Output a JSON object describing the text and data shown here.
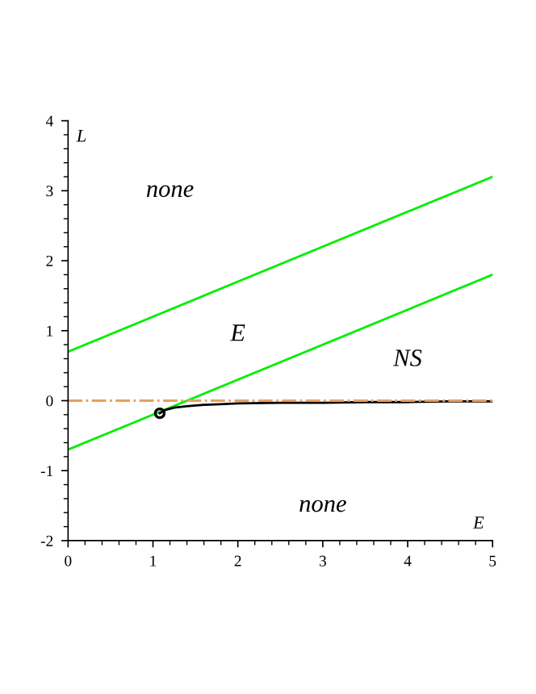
{
  "chart_data": {
    "type": "line",
    "xlabel": "E",
    "ylabel": "L",
    "xlim": [
      0,
      5
    ],
    "ylim": [
      -2,
      4
    ],
    "xticks": [
      0,
      1,
      2,
      3,
      4,
      5
    ],
    "yticks": [
      -2,
      -1,
      0,
      1,
      2,
      3,
      4
    ],
    "grid": false,
    "legend": false,
    "series": [
      {
        "color": "#00ee00",
        "x": [
          0,
          5
        ],
        "values": [
          0.7,
          3.2
        ]
      },
      {
        "color": "#00ee00",
        "x": [
          0,
          5
        ],
        "values": [
          -0.7,
          1.8
        ]
      },
      {
        "color": "#000000",
        "x": [
          1.08,
          1.15,
          1.25,
          1.4,
          1.6,
          1.8,
          2,
          2.5,
          3,
          3.5,
          4,
          4.5,
          5
        ],
        "values": [
          -0.18,
          -0.13,
          -0.1,
          -0.08,
          -0.06,
          -0.05,
          -0.04,
          -0.03,
          -0.03,
          -0.02,
          -0.02,
          -0.01,
          -0.01
        ]
      },
      {
        "type": "scatter",
        "color": "#000000",
        "marker": "circle",
        "x": [
          1.08
        ],
        "values": [
          -0.18
        ]
      }
    ],
    "ref_lines": [
      {
        "axis": "y",
        "value": 0,
        "color": "#e8a060",
        "line_style": "dashdot"
      }
    ],
    "annotations": [
      "none",
      "E",
      "NS",
      "none"
    ]
  }
}
